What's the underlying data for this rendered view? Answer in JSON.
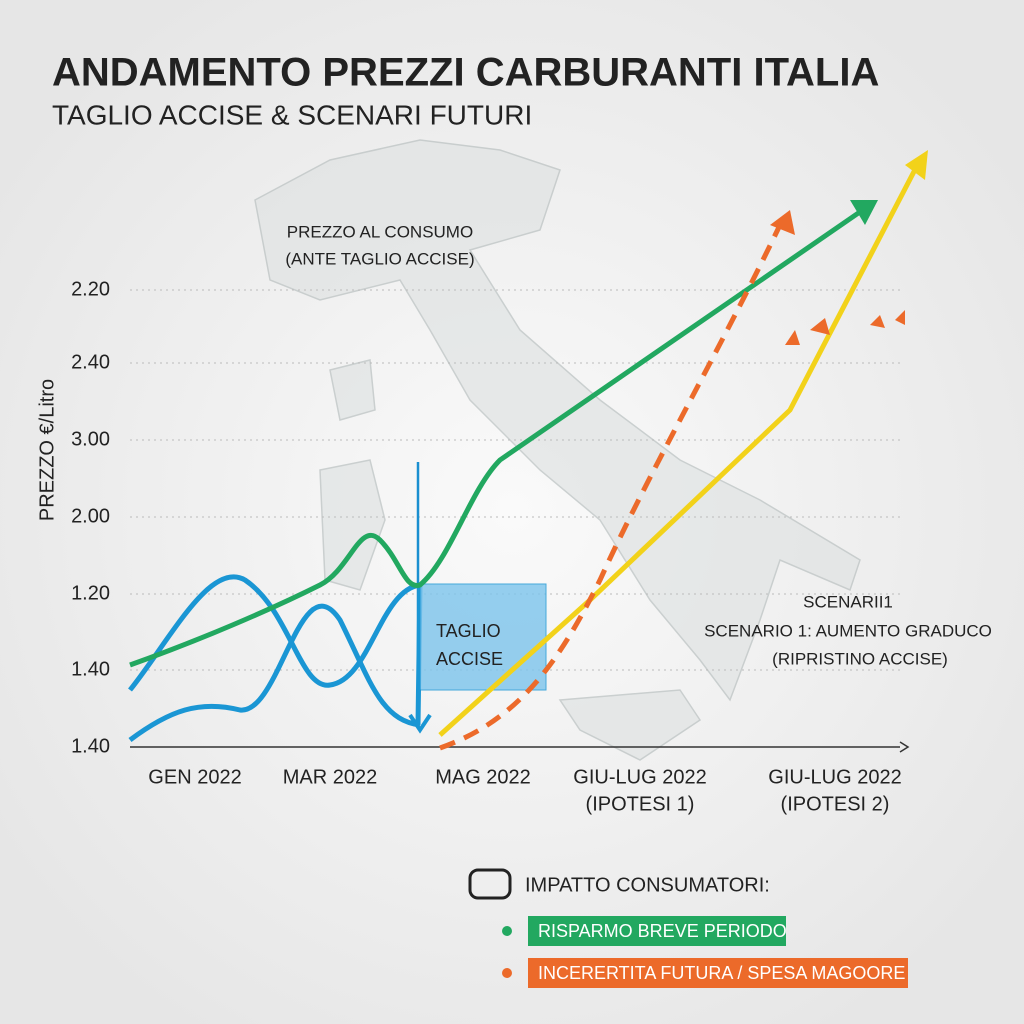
{
  "title": "ANDAMENTO PREZZI CARBURANTI ITALIA",
  "subtitle": "TAGLIO ACCISE & SCENARI FUTURI",
  "y_axis_label": "PREZZO €/Litro",
  "y_labels": [
    "2.20",
    "2.40",
    "3.00",
    "2.00",
    "1.20",
    "1.40",
    "1.40"
  ],
  "x_labels": [
    [
      "GEN 2022"
    ],
    [
      "MAR 2022"
    ],
    [
      "MAG 2022"
    ],
    [
      "GIU-LUG 2022",
      "(IPOTESI 1)"
    ],
    [
      "GIU-LUG 2022",
      "(IPOTESI 2)"
    ]
  ],
  "annotations": {
    "consumer_price": [
      "PREZZO AL CONSUMO",
      "(ANTE TAGLIO ACCISE)"
    ],
    "cut_box": [
      "TAGLIO",
      "ACCISE"
    ],
    "scenario": [
      "SCENARII1",
      "SCENARIO 1: AUMENTO GRADUCO",
      "(RIPRISTINO ACCISE)"
    ]
  },
  "legend": {
    "title": "IMPATTO CONSUMATORI:",
    "items": [
      "RISPARMO BREVE PERIODO",
      "INCERERTITA FUTURA / SPESA MAGOORE"
    ]
  }
}
